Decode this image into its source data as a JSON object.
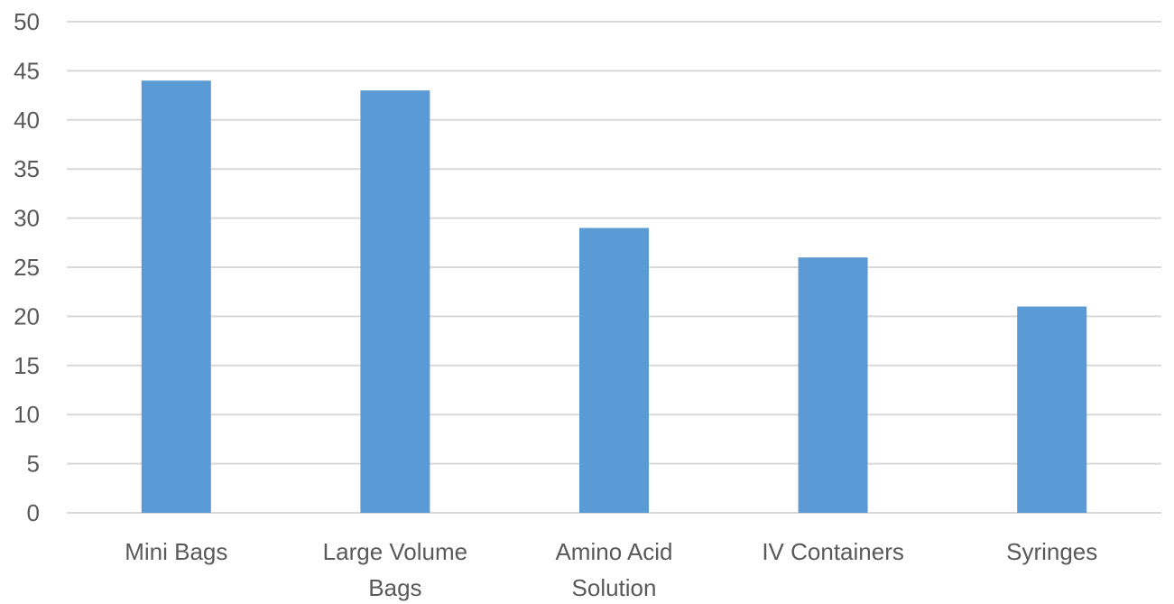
{
  "chart_data": {
    "type": "bar",
    "title": "",
    "xlabel": "",
    "ylabel": "",
    "categories": [
      "Mini Bags",
      "Large Volume Bags",
      "Amino Acid Solution",
      "IV Containers",
      "Syringes"
    ],
    "category_label_lines": [
      [
        "Mini Bags"
      ],
      [
        "Large Volume",
        "Bags"
      ],
      [
        "Amino Acid",
        "Solution"
      ],
      [
        "IV Containers"
      ],
      [
        "Syringes"
      ]
    ],
    "values": [
      44,
      43,
      29,
      26,
      21
    ],
    "ylim": [
      0,
      50
    ],
    "yticks": [
      0,
      5,
      10,
      15,
      20,
      25,
      30,
      35,
      40,
      45,
      50
    ],
    "grid": true,
    "legend": "none",
    "colors": {
      "bar": "#5b9bd5",
      "grid": "#d9d9d9",
      "axis_text": "#595959"
    }
  }
}
